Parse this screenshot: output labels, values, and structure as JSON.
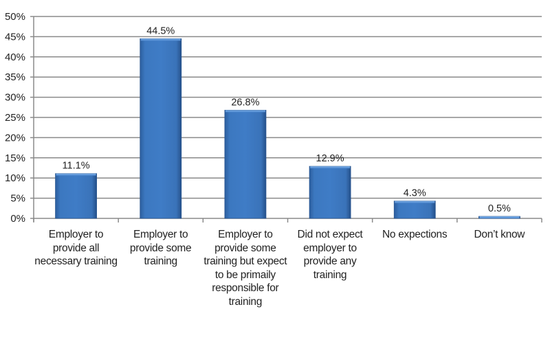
{
  "chart_data": {
    "type": "bar",
    "title": "",
    "xlabel": "",
    "ylabel": "",
    "categories": [
      "Employer to provide all necessary training",
      "Employer to provide some training",
      "Employer to provide some training but expect to be primaily responsible for training",
      "Did not expect employer to provide any training",
      "No expections",
      "Don’t know"
    ],
    "values": [
      11.1,
      44.5,
      26.8,
      12.9,
      4.3,
      0.5
    ],
    "data_labels": [
      "11.1%",
      "44.5%",
      "26.8%",
      "12.9%",
      "4.3%",
      "0.5%"
    ],
    "ylim": [
      0,
      50
    ],
    "yticks": [
      0,
      5,
      10,
      15,
      20,
      25,
      30,
      35,
      40,
      45,
      50
    ],
    "ytick_labels": [
      "0%",
      "5%",
      "10%",
      "15%",
      "20%",
      "25%",
      "30%",
      "35%",
      "40%",
      "45%",
      "50%"
    ],
    "grid": true,
    "legend": "none",
    "bar_color": "#3a74bd"
  }
}
